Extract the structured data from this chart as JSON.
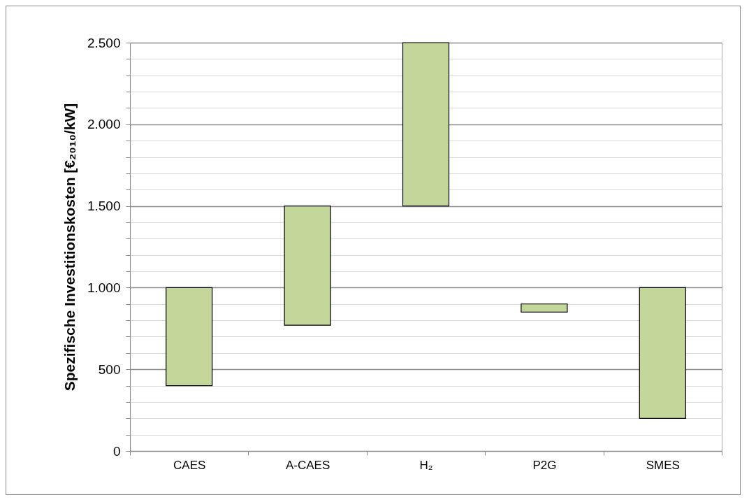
{
  "chart_data": {
    "type": "bar",
    "ylabel": "Spezifische Investitionskosten [€₂₀₁₀/kW]",
    "categories": [
      "CAES",
      "A-CAES",
      "H₂",
      "P2G",
      "SMES"
    ],
    "base": [
      400,
      770,
      1500,
      850,
      200
    ],
    "values": [
      600,
      730,
      1000,
      50,
      800
    ],
    "color": "#c4d79b",
    "ylim": [
      0,
      2500
    ],
    "yticks": [
      0,
      {
        "value": 100,
        "label": null
      },
      {
        "value": 200,
        "label": null
      },
      {
        "value": 300,
        "label": null
      },
      {
        "value": 400,
        "label": null
      },
      500,
      {
        "value": 600,
        "label": null
      },
      {
        "value": 700,
        "label": null
      },
      {
        "value": 800,
        "label": null
      },
      {
        "value": 900,
        "label": null
      },
      {
        "value": 1000,
        "label": "1.000"
      },
      {
        "value": 1100,
        "label": null
      },
      {
        "value": 1200,
        "label": null
      },
      {
        "value": 1300,
        "label": null
      },
      {
        "value": 1400,
        "label": null
      },
      {
        "value": 1500,
        "label": "1.500"
      },
      {
        "value": 1600,
        "label": null
      },
      {
        "value": 1700,
        "label": null
      },
      {
        "value": 1800,
        "label": null
      },
      {
        "value": 1900,
        "label": null
      },
      {
        "value": 2000,
        "label": "2.000"
      },
      {
        "value": 2100,
        "label": null
      },
      {
        "value": 2200,
        "label": null
      },
      {
        "value": 2300,
        "label": null
      },
      {
        "value": 2400,
        "label": null
      },
      {
        "value": 2500,
        "label": "2.500"
      }
    ],
    "grid": true
  }
}
